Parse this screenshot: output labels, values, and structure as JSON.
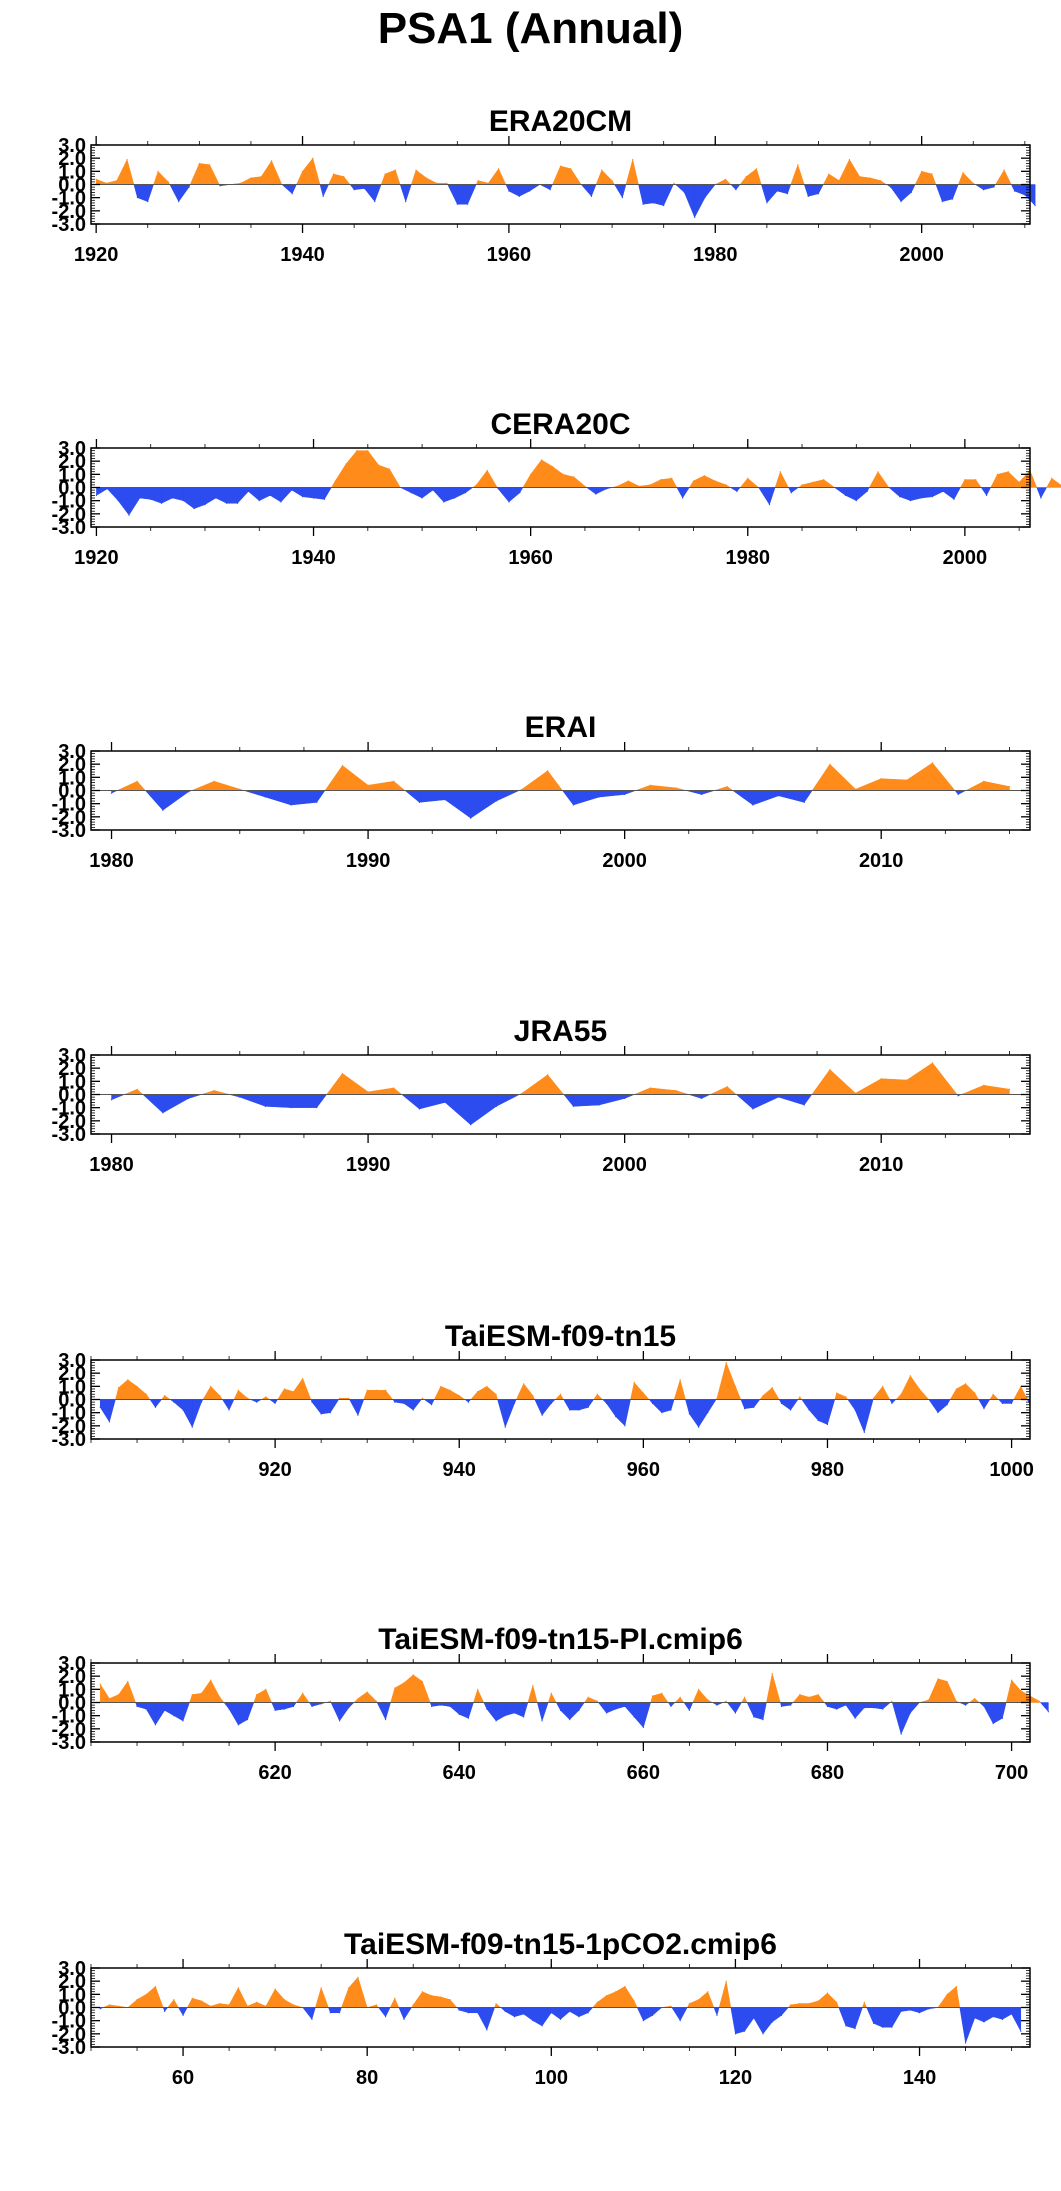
{
  "figure": {
    "title": "PSA1 (Annual)"
  },
  "colors": {
    "positive": "#ff8c1a",
    "negative": "#2c4cf0",
    "axis": "#000000"
  },
  "chart_data": [
    {
      "type": "area",
      "title": "ERA20CM",
      "ylim": [
        -3.0,
        3.0
      ],
      "yticks": [
        "3.0",
        "2.0",
        "1.0",
        "0.0",
        "-1.0",
        "-2.0",
        "-3.0"
      ],
      "xlim": [
        1919.5,
        2010.5
      ],
      "xticks": [
        1920,
        1940,
        1960,
        1980,
        2000
      ],
      "x_start": 1920,
      "values": [
        0.4,
        0.1,
        0.3,
        1.9,
        -1.0,
        -1.3,
        1.0,
        0.2,
        -1.3,
        -0.2,
        1.6,
        1.5,
        -0.1,
        0.0,
        0.1,
        0.5,
        0.6,
        1.8,
        0.0,
        -0.7,
        1.0,
        2.0,
        -0.9,
        0.8,
        0.6,
        -0.4,
        -0.3,
        -1.3,
        0.8,
        1.1,
        -1.3,
        1.1,
        0.5,
        0.1,
        0.1,
        -1.5,
        -1.5,
        0.3,
        0.1,
        1.2,
        -0.5,
        -0.9,
        -0.5,
        0.0,
        -0.4,
        1.4,
        1.2,
        0.0,
        -0.9,
        1.1,
        0.3,
        -1.0,
        1.9,
        -1.5,
        -1.4,
        -1.6,
        0.1,
        -0.6,
        -2.5,
        -1.0,
        0.0,
        0.4,
        -0.4,
        0.6,
        1.2,
        -1.4,
        -0.5,
        -0.7,
        1.5,
        -0.9,
        -0.7,
        0.8,
        0.3,
        1.9,
        0.6,
        0.5,
        0.3,
        -0.2,
        -1.3,
        -0.6,
        1.0,
        0.8,
        -1.3,
        -1.1,
        0.9,
        0.1,
        -0.4,
        -0.2,
        1.1,
        -0.5,
        -0.8,
        -1.6
      ]
    },
    {
      "type": "area",
      "title": "CERA20C",
      "ylim": [
        -3.0,
        3.0
      ],
      "yticks": [
        "3.0",
        "2.0",
        "1.0",
        "0.0",
        "-1.0",
        "-2.0",
        "-3.0"
      ],
      "xlim": [
        1919.5,
        2006
      ],
      "xticks": [
        1920,
        1940,
        1960,
        1980,
        2000
      ],
      "x_start": 1920,
      "values": [
        -0.6,
        -0.1,
        -1.0,
        -2.1,
        -0.8,
        -0.9,
        -1.2,
        -0.8,
        -1.0,
        -1.6,
        -1.3,
        -0.8,
        -1.2,
        -1.2,
        -0.3,
        -1.0,
        -0.6,
        -1.1,
        -0.2,
        -0.7,
        -0.8,
        -0.9,
        0.5,
        1.8,
        2.8,
        2.8,
        1.7,
        1.4,
        0.0,
        -0.4,
        -0.8,
        -0.2,
        -1.1,
        -0.8,
        -0.4,
        0.2,
        1.3,
        -0.1,
        -1.1,
        -0.4,
        1.0,
        2.1,
        1.6,
        1.0,
        0.8,
        0.1,
        -0.5,
        -0.1,
        0.1,
        0.5,
        0.1,
        0.2,
        0.6,
        0.7,
        -0.8,
        0.5,
        0.9,
        0.5,
        0.2,
        -0.3,
        0.7,
        0.0,
        -1.3,
        1.2,
        -0.4,
        0.2,
        0.4,
        0.6,
        0.0,
        -0.6,
        -1.0,
        -0.3,
        1.2,
        0.0,
        -0.7,
        -1.0,
        -0.8,
        -0.7,
        -0.3,
        -0.9,
        0.6,
        0.6,
        -0.6,
        1.0,
        1.2,
        0.4,
        1.3,
        -0.8,
        0.7,
        0.1,
        -0.2
      ]
    },
    {
      "type": "area",
      "title": "ERAI",
      "ylim": [
        -3.0,
        3.0
      ],
      "yticks": [
        "3.0",
        "2.0",
        "1.0",
        "0.0",
        "-1.0",
        "-2.0",
        "-3.0"
      ],
      "xlim": [
        1979.2,
        2015.8
      ],
      "xticks": [
        1980,
        1990,
        2000,
        2010
      ],
      "x_start": 1980,
      "values": [
        -0.2,
        0.7,
        -1.5,
        -0.1,
        0.7,
        0.1,
        -0.5,
        -1.1,
        -0.9,
        1.9,
        0.4,
        0.7,
        -0.9,
        -0.7,
        -2.1,
        -0.8,
        0.1,
        1.5,
        -1.1,
        -0.5,
        -0.3,
        0.4,
        0.2,
        -0.3,
        0.3,
        -1.1,
        -0.4,
        -0.9,
        2.0,
        0.1,
        0.9,
        0.8,
        2.1,
        -0.3,
        0.7,
        0.3
      ]
    },
    {
      "type": "area",
      "title": "JRA55",
      "ylim": [
        -3.0,
        3.0
      ],
      "yticks": [
        "3.0",
        "2.0",
        "1.0",
        "0.0",
        "-1.0",
        "-2.0",
        "-3.0"
      ],
      "xlim": [
        1979.2,
        2015.8
      ],
      "xticks": [
        1980,
        1990,
        2000,
        2010
      ],
      "x_start": 1980,
      "values": [
        -0.4,
        0.4,
        -1.4,
        -0.3,
        0.3,
        -0.2,
        -0.9,
        -1.0,
        -1.0,
        1.6,
        0.2,
        0.5,
        -1.1,
        -0.6,
        -2.3,
        -0.9,
        0.1,
        1.5,
        -0.9,
        -0.8,
        -0.3,
        0.5,
        0.3,
        -0.3,
        0.6,
        -1.1,
        -0.2,
        -0.8,
        1.9,
        0.1,
        1.2,
        1.1,
        2.4,
        -0.1,
        0.7,
        0.4
      ]
    },
    {
      "type": "area",
      "title": "TaiESM-f09-tn15",
      "ylim": [
        -3.0,
        3.0
      ],
      "yticks": [
        "3.0",
        "2.0",
        "1.0",
        "0.0",
        "-1.0",
        "-2.0",
        "-3.0"
      ],
      "xlim": [
        900,
        1002
      ],
      "xticks": [
        920,
        940,
        960,
        980,
        1000
      ],
      "x_start": 901,
      "values": [
        -0.6,
        -1.7,
        0.9,
        1.5,
        1.0,
        0.4,
        -0.6,
        0.3,
        -0.2,
        -0.8,
        -2.1,
        -0.2,
        1.0,
        0.3,
        -0.8,
        0.7,
        0.1,
        -0.2,
        0.2,
        -0.3,
        0.8,
        0.6,
        1.6,
        -0.2,
        -1.1,
        -1.0,
        0.1,
        0.1,
        -1.2,
        0.7,
        0.7,
        0.7,
        -0.2,
        -0.3,
        -0.8,
        0.1,
        -0.4,
        1.0,
        0.7,
        0.3,
        -0.2,
        0.6,
        1.0,
        0.4,
        -2.1,
        -0.3,
        1.2,
        0.3,
        -1.2,
        -0.3,
        0.4,
        -0.8,
        -0.8,
        -0.6,
        0.4,
        -0.3,
        -1.3,
        -2.0,
        1.3,
        0.5,
        -0.3,
        -1.0,
        -0.8,
        1.5,
        -1.1,
        -2.1,
        -1.0,
        0.1,
        2.8,
        1.0,
        -0.7,
        -0.6,
        0.3,
        0.9,
        -0.3,
        -0.8,
        0.2,
        -0.8,
        -1.6,
        -1.9,
        0.5,
        0.2,
        -0.8,
        -2.5,
        0.1,
        1.0,
        -0.3,
        0.4,
        1.8,
        0.8,
        0.0,
        -1.0,
        -0.4,
        0.8,
        1.2,
        0.5,
        -0.7,
        0.4,
        -0.3,
        -0.3,
        1.0,
        -0.4
      ]
    },
    {
      "type": "area",
      "title": "TaiESM-f09-tn15-PI.cmip6",
      "ylim": [
        -3.0,
        3.0
      ],
      "yticks": [
        "3.0",
        "2.0",
        "1.0",
        "0.0",
        "-1.0",
        "-2.0",
        "-3.0"
      ],
      "xlim": [
        600,
        702
      ],
      "xticks": [
        620,
        640,
        660,
        680,
        700
      ],
      "x_start": 601,
      "values": [
        1.4,
        0.3,
        0.6,
        1.6,
        -0.3,
        -0.5,
        -1.7,
        -0.6,
        -1.0,
        -1.4,
        0.6,
        0.7,
        1.7,
        0.4,
        -0.5,
        -1.7,
        -1.3,
        0.6,
        1.0,
        -0.6,
        -0.5,
        -0.3,
        0.7,
        -0.3,
        -0.1,
        0.1,
        -1.4,
        -0.4,
        0.3,
        0.8,
        0.1,
        -1.3,
        1.1,
        1.5,
        2.1,
        1.6,
        -0.3,
        -0.2,
        -0.3,
        -0.9,
        -1.2,
        1.0,
        -0.5,
        -1.4,
        -1.0,
        -0.8,
        -1.1,
        1.3,
        -1.4,
        0.7,
        -0.6,
        -1.3,
        -0.6,
        0.4,
        0.1,
        -0.8,
        -0.5,
        -0.3,
        -1.1,
        -1.9,
        0.5,
        0.7,
        -0.3,
        0.4,
        -0.6,
        1.0,
        0.2,
        -0.2,
        0.1,
        -0.8,
        0.4,
        -1.1,
        -1.3,
        2.2,
        -0.3,
        -0.2,
        0.6,
        0.4,
        0.6,
        -0.3,
        -0.5,
        -0.2,
        -1.2,
        -0.4,
        -0.4,
        -0.5,
        0.1,
        -2.4,
        -0.8,
        0.0,
        0.2,
        1.8,
        1.6,
        0.1,
        -0.2,
        0.3,
        -0.3,
        -1.6,
        -1.2,
        1.7,
        0.9,
        0.5,
        0.1,
        -0.7
      ]
    },
    {
      "type": "area",
      "title": "TaiESM-f09-tn15-1pCO2.cmip6",
      "ylim": [
        -3.0,
        3.0
      ],
      "yticks": [
        "3.0",
        "2.0",
        "1.0",
        "0.0",
        "-1.0",
        "-2.0",
        "-3.0"
      ],
      "xlim": [
        50,
        152
      ],
      "xticks": [
        60,
        80,
        100,
        120,
        140
      ],
      "x_start": 51,
      "values": [
        -0.1,
        0.2,
        0.1,
        0.0,
        0.6,
        1.0,
        1.6,
        -0.3,
        0.6,
        -0.6,
        0.7,
        0.5,
        0.1,
        0.3,
        0.2,
        1.5,
        0.1,
        0.4,
        0.1,
        1.4,
        0.6,
        0.2,
        0.0,
        -0.9,
        1.5,
        -0.4,
        -0.4,
        1.5,
        2.3,
        0.0,
        0.2,
        -0.7,
        0.7,
        -0.9,
        0.2,
        1.2,
        0.9,
        0.8,
        0.6,
        -0.2,
        -0.4,
        -0.4,
        -1.7,
        0.3,
        -0.3,
        -0.7,
        -0.5,
        -1.0,
        -1.4,
        -0.4,
        -0.9,
        -0.3,
        -0.7,
        -0.4,
        0.4,
        0.9,
        1.2,
        1.6,
        0.5,
        -1.0,
        -0.6,
        0.0,
        0.1,
        -1.0,
        0.3,
        0.6,
        1.2,
        -0.6,
        2.0,
        -2.0,
        -1.8,
        -0.8,
        -2.0,
        -1.1,
        -0.6,
        0.2,
        0.3,
        0.3,
        0.5,
        1.1,
        0.4,
        -1.4,
        -1.6,
        0.4,
        -1.2,
        -1.5,
        -1.5,
        -0.3,
        -0.2,
        -0.4,
        -0.1,
        0.0,
        1.0,
        1.6,
        -2.7,
        -0.8,
        -1.1,
        -0.7,
        -0.9,
        -0.5,
        -1.8
      ]
    }
  ]
}
